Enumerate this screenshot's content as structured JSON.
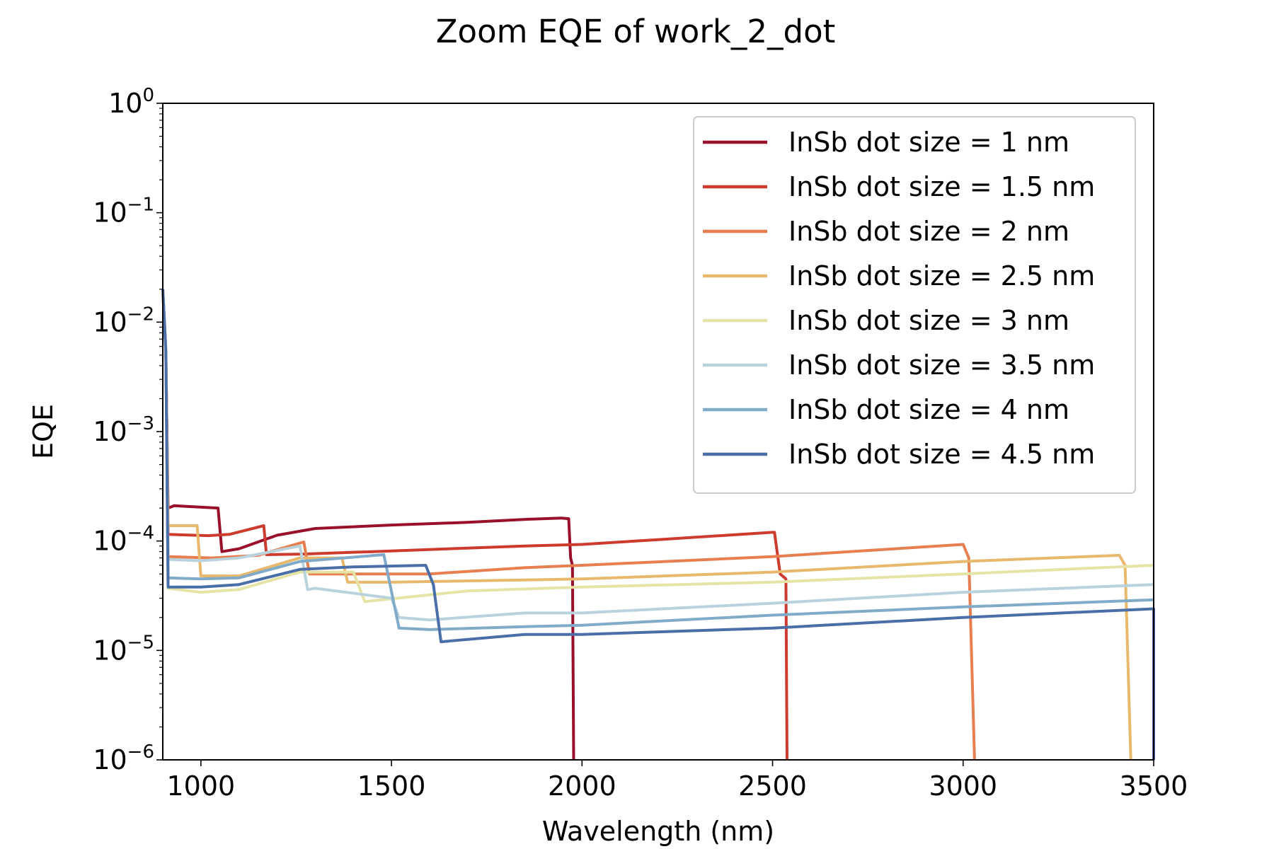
{
  "chart_data": {
    "type": "line",
    "title": "Zoom EQE of work_2_dot",
    "xlabel": "Wavelength (nm)",
    "ylabel": "EQE",
    "xlim": [
      900,
      3500
    ],
    "ylim": [
      1e-06,
      1
    ],
    "yscale": "log",
    "grid": false,
    "legend_position": "top-right",
    "x_ticks": [
      {
        "value": 1000,
        "label": "1000"
      },
      {
        "value": 1500,
        "label": "1500"
      },
      {
        "value": 2000,
        "label": "2000"
      },
      {
        "value": 2500,
        "label": "2500"
      },
      {
        "value": 3000,
        "label": "3000"
      },
      {
        "value": 3500,
        "label": "3500"
      }
    ],
    "y_ticks": [
      {
        "value": 1,
        "base": "10",
        "exp": "0"
      },
      {
        "value": 0.1,
        "base": "10",
        "exp": "−1"
      },
      {
        "value": 0.01,
        "base": "10",
        "exp": "−2"
      },
      {
        "value": 0.001,
        "base": "10",
        "exp": "−3"
      },
      {
        "value": 0.0001,
        "base": "10",
        "exp": "−4"
      },
      {
        "value": 1e-05,
        "base": "10",
        "exp": "−5"
      },
      {
        "value": 1e-06,
        "base": "10",
        "exp": "−6"
      }
    ],
    "series": [
      {
        "name": "InSb dot size = 1 nm",
        "color": "#9a0f2a",
        "points": [
          [
            900,
            0.02
          ],
          [
            908,
            0.0055
          ],
          [
            914,
            0.0002
          ],
          [
            930,
            0.00021
          ],
          [
            1045,
            0.0002
          ],
          [
            1055,
            8e-05
          ],
          [
            1100,
            8.5e-05
          ],
          [
            1200,
            0.000113
          ],
          [
            1300,
            0.00013
          ],
          [
            1500,
            0.00014
          ],
          [
            1700,
            0.000148
          ],
          [
            1860,
            0.000158
          ],
          [
            1945,
            0.000162
          ],
          [
            1965,
            0.00016
          ],
          [
            1970,
            7e-05
          ],
          [
            1975,
            6e-05
          ],
          [
            1978,
            1e-06
          ]
        ]
      },
      {
        "name": "InSb dot size = 1.5 nm",
        "color": "#cd3a2e",
        "points": [
          [
            900,
            0.02
          ],
          [
            908,
            0.0055
          ],
          [
            914,
            0.000115
          ],
          [
            1020,
            0.000112
          ],
          [
            1075,
            0.000115
          ],
          [
            1165,
            0.000138
          ],
          [
            1172,
            7.5e-05
          ],
          [
            1270,
            7.6e-05
          ],
          [
            1450,
            8e-05
          ],
          [
            1850,
            9e-05
          ],
          [
            2000,
            9.3e-05
          ],
          [
            2200,
            0.000103
          ],
          [
            2500,
            0.00012
          ],
          [
            2505,
            0.00012
          ],
          [
            2520,
            5e-05
          ],
          [
            2535,
            4.5e-05
          ],
          [
            2538,
            1e-06
          ]
        ]
      },
      {
        "name": "InSb dot size = 2 nm",
        "color": "#e67e4f",
        "points": [
          [
            900,
            0.02
          ],
          [
            908,
            0.0055
          ],
          [
            914,
            7.2e-05
          ],
          [
            1030,
            7e-05
          ],
          [
            1150,
            7.4e-05
          ],
          [
            1270,
            9.8e-05
          ],
          [
            1285,
            5e-05
          ],
          [
            1400,
            5e-05
          ],
          [
            1600,
            5e-05
          ],
          [
            1850,
            5.7e-05
          ],
          [
            2000,
            6e-05
          ],
          [
            2500,
            7.2e-05
          ],
          [
            3000,
            9.3e-05
          ],
          [
            3015,
            7e-05
          ],
          [
            3030,
            1e-06
          ]
        ]
      },
      {
        "name": "InSb dot size = 2.5 nm",
        "color": "#e8b86c",
        "points": [
          [
            900,
            0.02
          ],
          [
            908,
            0.0055
          ],
          [
            914,
            0.000138
          ],
          [
            990,
            0.000138
          ],
          [
            1000,
            4.8e-05
          ],
          [
            1100,
            4.8e-05
          ],
          [
            1260,
            7e-05
          ],
          [
            1370,
            7e-05
          ],
          [
            1385,
            4.2e-05
          ],
          [
            1500,
            4.2e-05
          ],
          [
            2000,
            4.5e-05
          ],
          [
            2500,
            5.2e-05
          ],
          [
            3000,
            6.5e-05
          ],
          [
            3410,
            7.4e-05
          ],
          [
            3425,
            6e-05
          ],
          [
            3440,
            1e-06
          ]
        ]
      },
      {
        "name": "InSb dot size = 3 nm",
        "color": "#e6e3a6",
        "points": [
          [
            900,
            0.02
          ],
          [
            908,
            0.0055
          ],
          [
            914,
            3.7e-05
          ],
          [
            1000,
            3.4e-05
          ],
          [
            1100,
            3.6e-05
          ],
          [
            1260,
            5.2e-05
          ],
          [
            1400,
            5.2e-05
          ],
          [
            1430,
            2.8e-05
          ],
          [
            1700,
            3.5e-05
          ],
          [
            2000,
            3.8e-05
          ],
          [
            2500,
            4.2e-05
          ],
          [
            3000,
            5e-05
          ],
          [
            3500,
            6e-05
          ]
        ]
      },
      {
        "name": "InSb dot size = 3.5 nm",
        "color": "#b9d3de",
        "points": [
          [
            900,
            0.02
          ],
          [
            908,
            0.0055
          ],
          [
            914,
            6.8e-05
          ],
          [
            1000,
            6.6e-05
          ],
          [
            1100,
            7e-05
          ],
          [
            1260,
            9e-05
          ],
          [
            1280,
            3.6e-05
          ],
          [
            1300,
            3.7e-05
          ],
          [
            1500,
            3e-05
          ],
          [
            1520,
            2e-05
          ],
          [
            1600,
            1.9e-05
          ],
          [
            1850,
            2.2e-05
          ],
          [
            2000,
            2.2e-05
          ],
          [
            2500,
            2.7e-05
          ],
          [
            3000,
            3.4e-05
          ],
          [
            3500,
            4e-05
          ]
        ]
      },
      {
        "name": "InSb dot size = 4 nm",
        "color": "#7fabc9",
        "points": [
          [
            900,
            0.02
          ],
          [
            908,
            0.0055
          ],
          [
            914,
            4.6e-05
          ],
          [
            1000,
            4.5e-05
          ],
          [
            1100,
            4.6e-05
          ],
          [
            1260,
            6.5e-05
          ],
          [
            1480,
            7.5e-05
          ],
          [
            1520,
            1.6e-05
          ],
          [
            1600,
            1.55e-05
          ],
          [
            1850,
            1.65e-05
          ],
          [
            2000,
            1.7e-05
          ],
          [
            2500,
            2.1e-05
          ],
          [
            3000,
            2.5e-05
          ],
          [
            3500,
            2.9e-05
          ]
        ]
      },
      {
        "name": "InSb dot size = 4.5 nm",
        "color": "#4a6fa8",
        "points": [
          [
            900,
            0.02
          ],
          [
            908,
            0.0055
          ],
          [
            914,
            3.8e-05
          ],
          [
            1000,
            3.8e-05
          ],
          [
            1100,
            4e-05
          ],
          [
            1260,
            5.5e-05
          ],
          [
            1400,
            5.8e-05
          ],
          [
            1590,
            6e-05
          ],
          [
            1610,
            4e-05
          ],
          [
            1630,
            1.2e-05
          ],
          [
            1850,
            1.4e-05
          ],
          [
            2000,
            1.4e-05
          ],
          [
            2500,
            1.6e-05
          ],
          [
            3000,
            2e-05
          ],
          [
            3500,
            2.4e-05
          ],
          [
            3500,
            1e-06
          ]
        ]
      }
    ]
  }
}
